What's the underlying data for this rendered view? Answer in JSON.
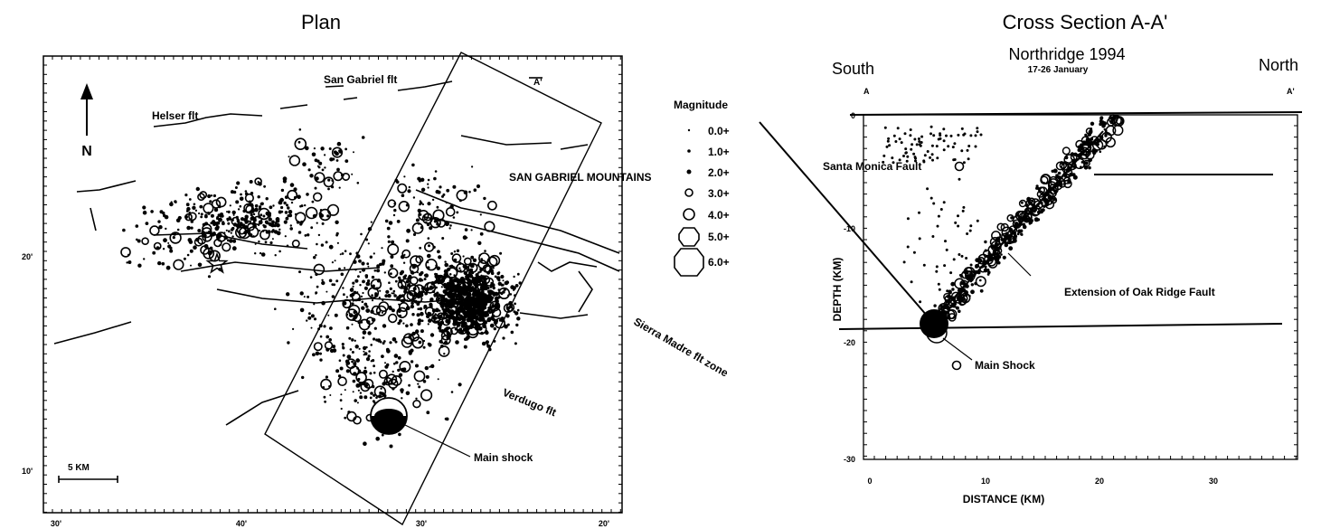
{
  "plan": {
    "title": "Plan",
    "north_label": "N",
    "scale_label": "5 KM",
    "x_ticks": [
      "30'",
      "40'",
      "30'",
      "20'"
    ],
    "y_ticks": [
      "20'",
      "10'"
    ],
    "labels": {
      "san_gabriel_flt": "San Gabriel flt",
      "helser_flt": "Helser flt",
      "san_gabriel_mountains": "SAN GABRIEL MOUNTAINS",
      "sierra_madre": "Sierra Madre flt zone",
      "verdugo": "Verdugo flt",
      "main_shock": "Main shock",
      "a_marker": "A'"
    },
    "legend": {
      "title": "Magnitude",
      "items": [
        "0.0+",
        "1.0+",
        "2.0+",
        "3.0+",
        "4.0+",
        "5.0+",
        "6.0+"
      ]
    }
  },
  "section": {
    "title": "Cross Section A-A'",
    "subtitle": "Northridge 1994",
    "subtitle2": "17-26 January",
    "south": "South",
    "north": "North",
    "a_left": "A",
    "a_right": "A'",
    "ylabel": "DEPTH (KM)",
    "xlabel": "DISTANCE (KM)",
    "x_ticks": [
      "0",
      "10",
      "20",
      "30"
    ],
    "y_ticks": [
      "0",
      "-10",
      "-20",
      "-30"
    ],
    "labels": {
      "santa_monica": "Santa Monica Fault",
      "oak_ridge": "Extension of Oak Ridge Fault",
      "main_shock": "Main Shock"
    }
  }
}
